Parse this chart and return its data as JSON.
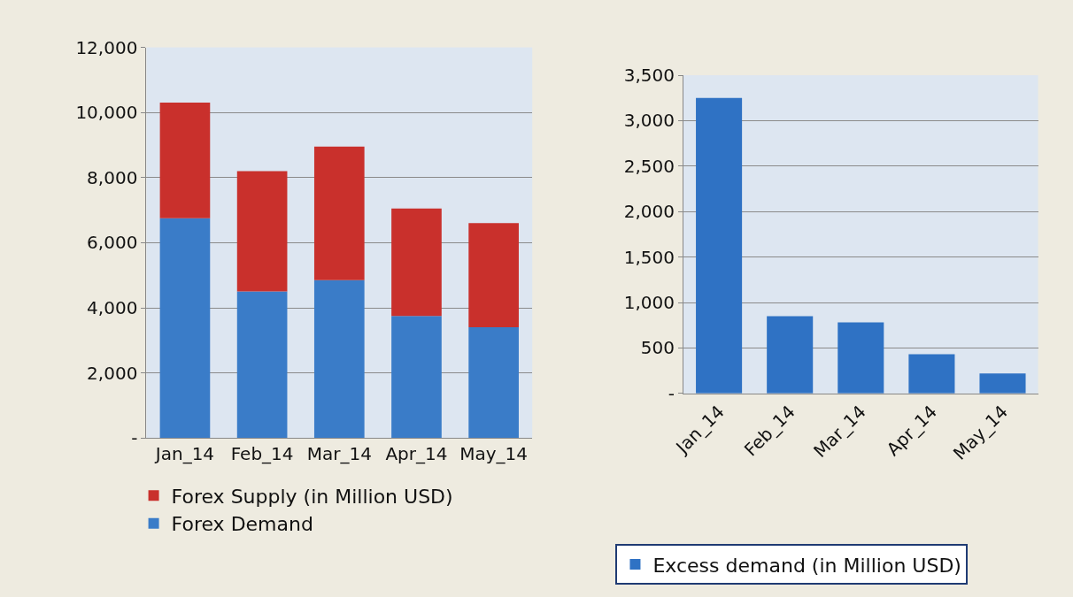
{
  "chart_data": [
    {
      "type": "bar",
      "stacked": true,
      "categories": [
        "Jan_14",
        "Feb_14",
        "Mar_14",
        "Apr_14",
        "May_14"
      ],
      "series": [
        {
          "name": "Forex Demand",
          "color": "#3a7cc8",
          "values": [
            6750,
            4500,
            4850,
            3750,
            3400
          ]
        },
        {
          "name": "Forex Supply (in Million USD)",
          "color": "#c9302c",
          "values": [
            3550,
            3700,
            4100,
            3300,
            3200
          ]
        }
      ],
      "ylim": [
        0,
        12000
      ],
      "yticks": [
        {
          "value": 0,
          "label": "-"
        },
        {
          "value": 2000,
          "label": "2,000"
        },
        {
          "value": 4000,
          "label": "4,000"
        },
        {
          "value": 6000,
          "label": "6,000"
        },
        {
          "value": 8000,
          "label": "8,000"
        },
        {
          "value": 10000,
          "label": "10,000"
        },
        {
          "value": 12000,
          "label": "12,000"
        }
      ],
      "grid": "y",
      "legend": "bottom"
    },
    {
      "type": "bar",
      "categories": [
        "Jan_14",
        "Feb_14",
        "Mar_14",
        "Apr_14",
        "May_14"
      ],
      "series": [
        {
          "name": "Excess demand (in Million USD)",
          "color": "#2f72c4",
          "values": [
            3250,
            850,
            780,
            430,
            220
          ]
        }
      ],
      "ylim": [
        0,
        3500
      ],
      "yticks": [
        {
          "value": 0,
          "label": "-"
        },
        {
          "value": 500,
          "label": "500"
        },
        {
          "value": 1000,
          "label": "1,000"
        },
        {
          "value": 1500,
          "label": "1,500"
        },
        {
          "value": 2000,
          "label": "2,000"
        },
        {
          "value": 2500,
          "label": "2,500"
        },
        {
          "value": 3000,
          "label": "3,000"
        },
        {
          "value": 3500,
          "label": "3,500"
        }
      ],
      "grid": "y",
      "legend": "bottom"
    }
  ]
}
